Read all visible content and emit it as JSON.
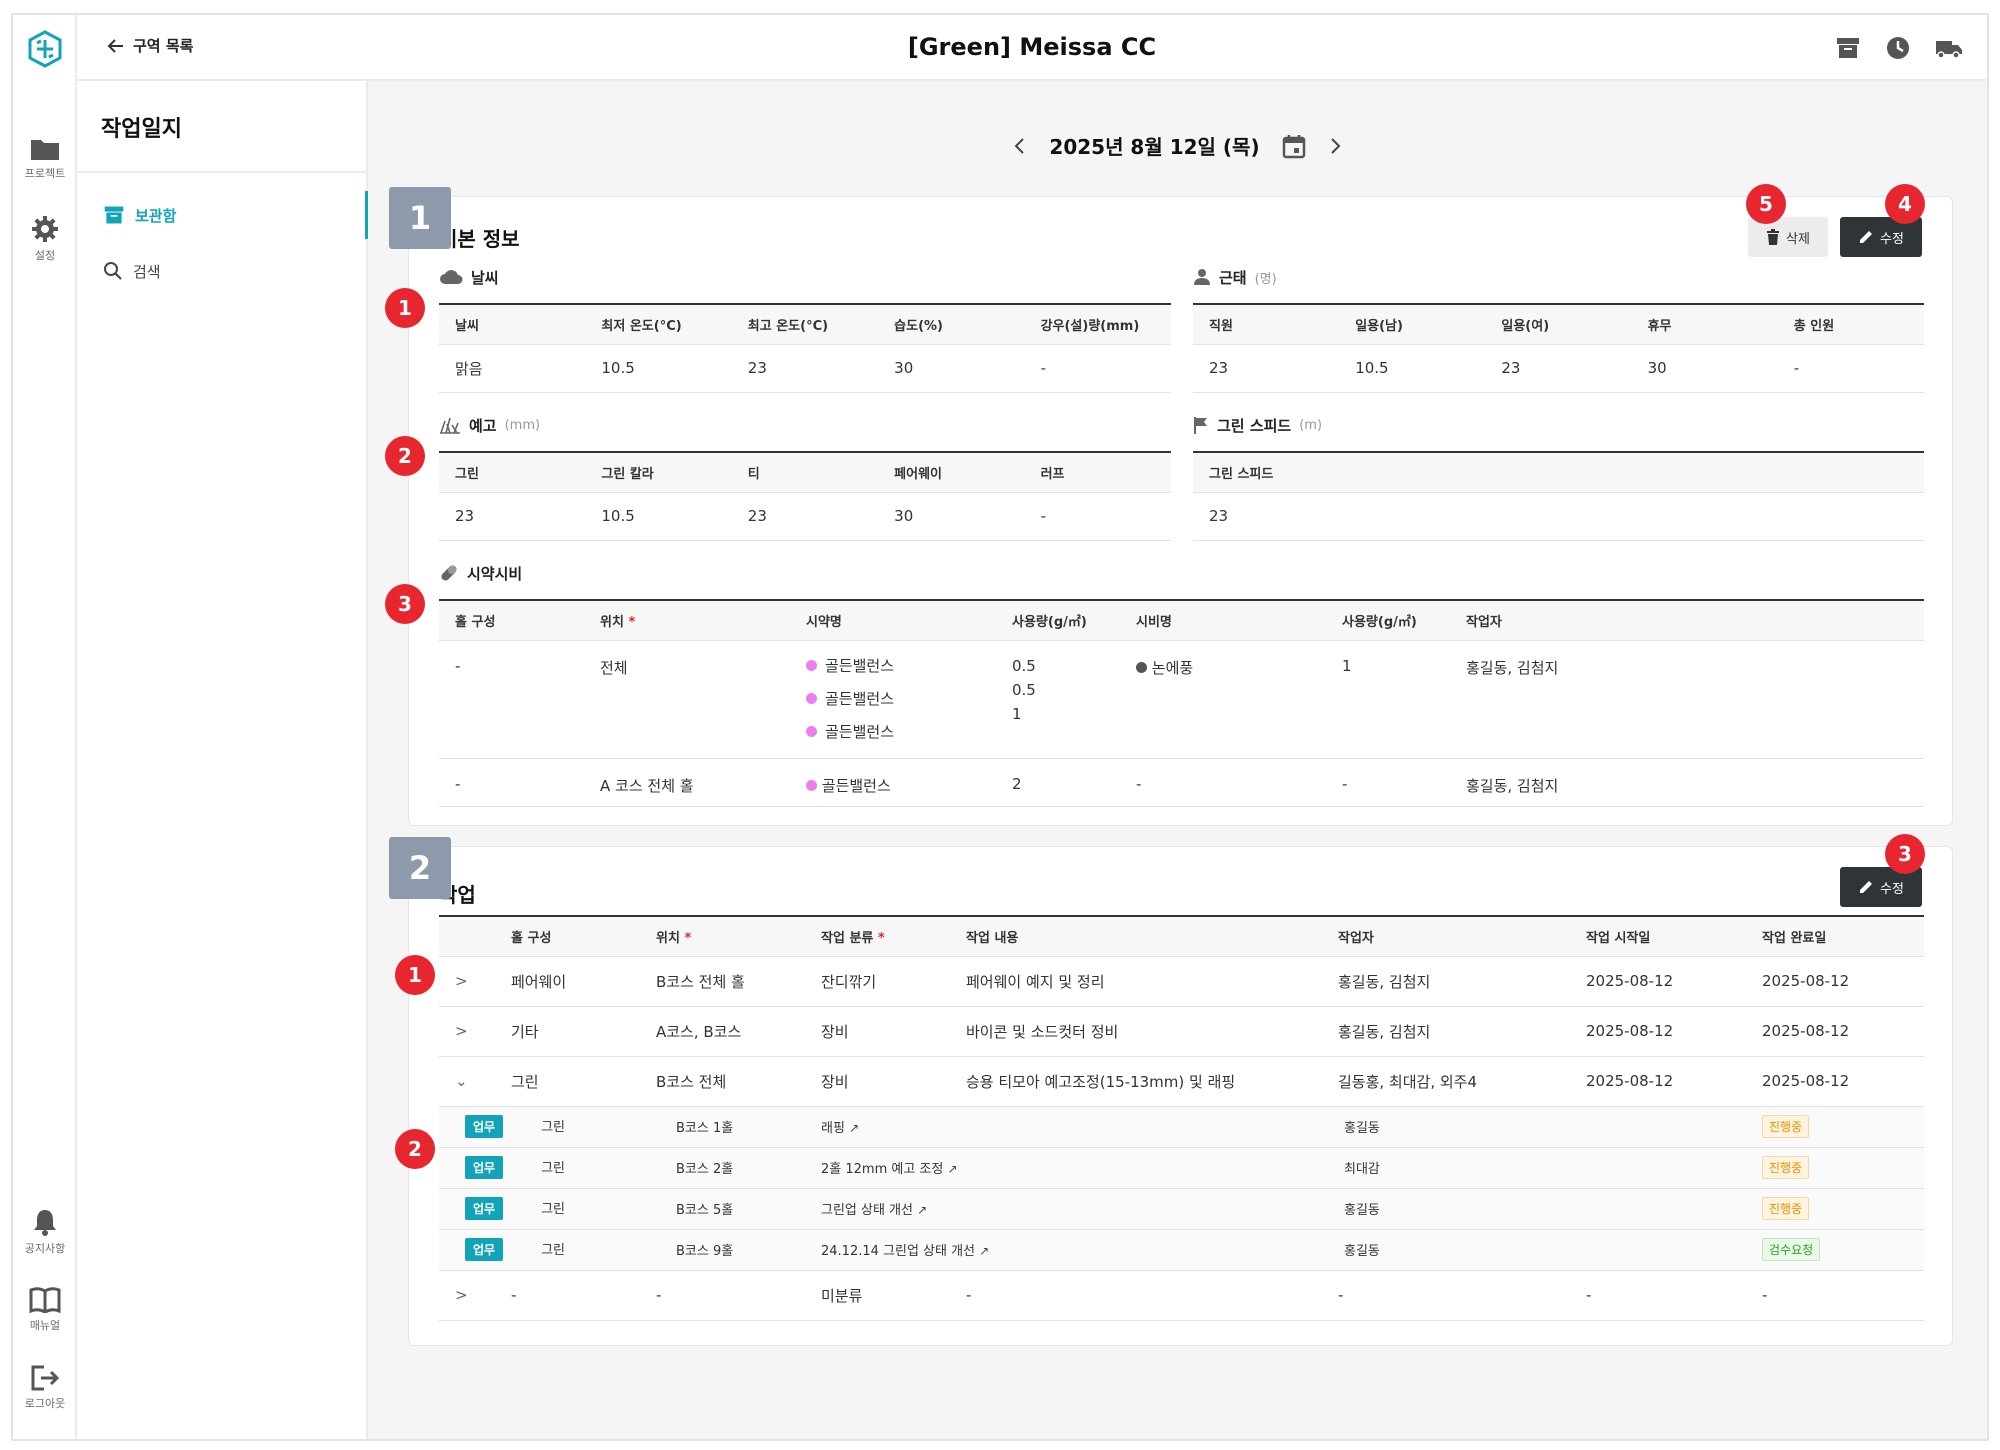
{
  "rail": {
    "items": [
      {
        "label": "프로젝트",
        "icon": "folder-icon"
      },
      {
        "label": "설정",
        "icon": "gear-icon"
      },
      {
        "label": "공지사항",
        "icon": "bell-icon"
      },
      {
        "label": "매뉴얼",
        "icon": "book-icon"
      },
      {
        "label": "로그아웃",
        "icon": "logout-icon"
      }
    ]
  },
  "header": {
    "back_label": "구역 목록",
    "title": "[Green] Meissa CC",
    "icons": [
      "archive-icon",
      "clock-icon",
      "truck-icon"
    ]
  },
  "sidebar": {
    "title": "작업일지",
    "items": [
      {
        "label": "보관함",
        "icon": "archive-icon",
        "active": true
      },
      {
        "label": "검색",
        "icon": "search-icon",
        "active": false
      }
    ]
  },
  "datebar": {
    "date": "2025년 8월 12일 (목)"
  },
  "basic": {
    "section_num": "1",
    "title": "기본 정보",
    "delete_label": "삭제",
    "edit_label": "수정",
    "badges": {
      "delete": "5",
      "edit": "4",
      "weather": "1",
      "forecast": "2",
      "chem": "3"
    },
    "weather": {
      "title": "날씨",
      "headers": [
        "날씨",
        "최저 온도(°C)",
        "최고 온도(°C)",
        "습도(%)",
        "강우(설)량(mm)"
      ],
      "row": [
        "맑음",
        "10.5",
        "23",
        "30",
        "-"
      ]
    },
    "attendance": {
      "title": "근태",
      "unit": "(명)",
      "headers": [
        "직원",
        "일용(남)",
        "일용(여)",
        "휴무",
        "총 인원"
      ],
      "row": [
        "23",
        "10.5",
        "23",
        "30",
        "-"
      ]
    },
    "forecast": {
      "title": "예고",
      "unit": "(mm)",
      "headers": [
        "그린",
        "그린 칼라",
        "티",
        "페어웨이",
        "러프"
      ],
      "row": [
        "23",
        "10.5",
        "23",
        "30",
        "-"
      ]
    },
    "green_speed": {
      "title": "그린 스피드",
      "unit": "(m)",
      "headers": [
        "그린 스피드"
      ],
      "row": [
        "23"
      ]
    },
    "chem": {
      "title": "시약시비",
      "headers": [
        "홀 구성",
        "위치",
        "시약명",
        "사용량(g/㎡)",
        "시비명",
        "사용량(g/㎡)",
        "작업자"
      ],
      "required_mark": "*",
      "rows": [
        {
          "hole": "-",
          "loc": "전체",
          "chems": [
            "골든밸런스",
            "골든밸런스",
            "골든밸런스"
          ],
          "amounts": [
            "0.5",
            "0.5",
            "1"
          ],
          "fert": "논에풍",
          "fert_amount": "1",
          "worker": "홍길동, 김첨지"
        },
        {
          "hole": "-",
          "loc": "A 코스 전체 홀",
          "chems": [
            "골든밸런스"
          ],
          "amounts": [
            "2"
          ],
          "fert": "-",
          "fert_amount": "-",
          "worker": "홍길동, 김첨지"
        }
      ]
    }
  },
  "work": {
    "section_num": "2",
    "title": "작업",
    "edit_label": "수정",
    "badges": {
      "edit": "3",
      "rows": "1",
      "subrows": "2"
    },
    "headers": [
      "홀 구성",
      "위치",
      "작업 분류",
      "작업 내용",
      "작업자",
      "작업 시작일",
      "작업 완료일"
    ],
    "required_mark": "*",
    "rows": [
      {
        "hole": "페어웨이",
        "loc": "B코스 전체 홀",
        "cat": "잔디깎기",
        "desc": "페어웨이 예지 및 정리",
        "worker": "홍길동, 김첨지",
        "start": "2025-08-12",
        "end": "2025-08-12"
      },
      {
        "hole": "기타",
        "loc": "A코스, B코스",
        "cat": "장비",
        "desc": "바이콘 및 소드컷터 정비",
        "worker": "홍길동, 김첨지",
        "start": "2025-08-12",
        "end": "2025-08-12"
      },
      {
        "hole": "그린",
        "loc": "B코스 전체",
        "cat": "장비",
        "desc": "승용 티모아 예고조정(15-13mm) 및 래핑",
        "worker": "길동홍, 최대감, 외주4",
        "start": "2025-08-12",
        "end": "2025-08-12"
      }
    ],
    "subrows": [
      {
        "tag": "업무",
        "hole": "그린",
        "loc": "B코스 1홀",
        "desc": "래핑",
        "worker": "홍길동",
        "status": "진행중"
      },
      {
        "tag": "업무",
        "hole": "그린",
        "loc": "B코스 2홀",
        "desc": "2홀 12mm 예고 조정",
        "worker": "최대감",
        "status": "진행중"
      },
      {
        "tag": "업무",
        "hole": "그린",
        "loc": "B코스 5홀",
        "desc": "그린업 상태 개선",
        "worker": "홍길동",
        "status": "진행중"
      },
      {
        "tag": "업무",
        "hole": "그린",
        "loc": "B코스 9홀",
        "desc": "24.12.14 그린업 상태 개선",
        "worker": "홍길동",
        "status": "검수요청"
      }
    ],
    "last_row": {
      "hole": "-",
      "loc": "-",
      "cat": "미분류",
      "desc": "-",
      "worker": "-",
      "start": "-",
      "end": "-"
    }
  },
  "colors": {
    "accent": "#13a3b8",
    "badge": "#e8262f",
    "section": "#8d9aab",
    "dark_button": "#2f3439"
  }
}
